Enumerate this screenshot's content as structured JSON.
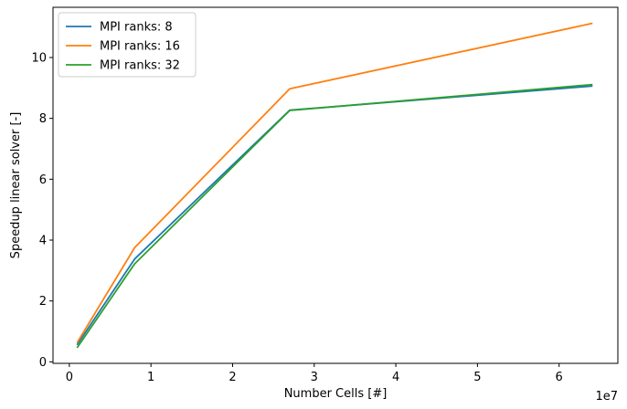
{
  "chart_data": {
    "type": "line",
    "title": "",
    "xlabel": "Number Cells [#]",
    "ylabel": "Speedup linear solver [-]",
    "x_offset_label": "1e7",
    "x_unit_multiplier": 10000000,
    "xlim": [
      -2000000,
      67200000
    ],
    "ylim": [
      -0.05,
      11.65
    ],
    "xticks": [
      0,
      10000000,
      20000000,
      30000000,
      40000000,
      50000000,
      60000000
    ],
    "xtick_labels": [
      "0",
      "1",
      "2",
      "3",
      "4",
      "5",
      "6"
    ],
    "yticks": [
      0,
      2,
      4,
      6,
      8,
      10
    ],
    "ytick_labels": [
      "0",
      "2",
      "4",
      "6",
      "8",
      "10"
    ],
    "grid": false,
    "legend_position": "top-left",
    "x": [
      1000000,
      8000000,
      27000000,
      64000000
    ],
    "series": [
      {
        "name": "MPI ranks: 8",
        "color": "#1f77b4",
        "values": [
          0.58,
          3.38,
          8.27,
          9.06
        ]
      },
      {
        "name": "MPI ranks: 16",
        "color": "#ff7f0e",
        "values": [
          0.65,
          3.75,
          8.97,
          11.12
        ]
      },
      {
        "name": "MPI ranks: 32",
        "color": "#2ca02c",
        "values": [
          0.48,
          3.22,
          8.26,
          9.11
        ]
      }
    ]
  }
}
